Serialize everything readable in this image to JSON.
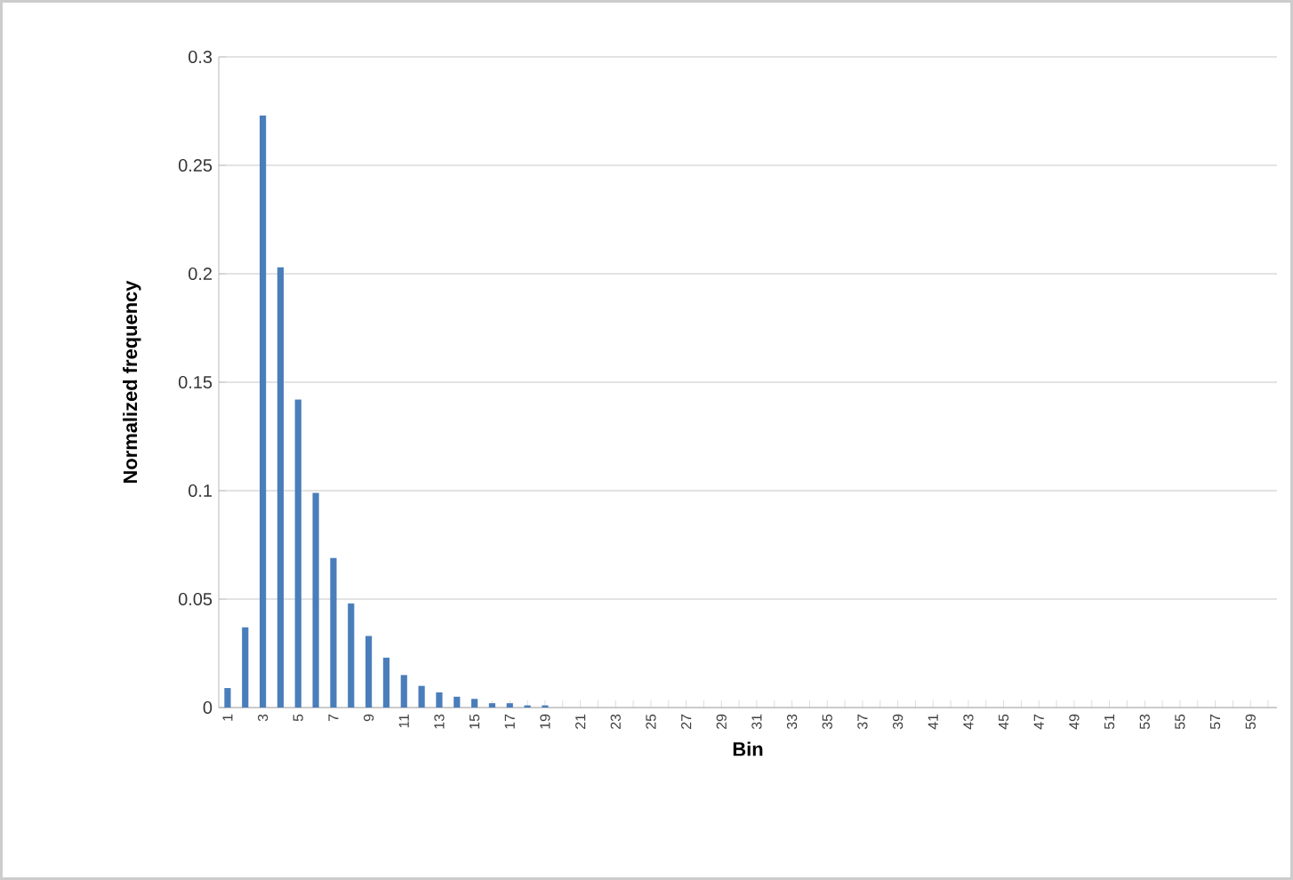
{
  "chart_data": {
    "type": "bar",
    "xlabel": "Bin",
    "ylabel": "Normalized frequency",
    "categories": [
      "1",
      null,
      "3",
      null,
      "5",
      null,
      "7",
      null,
      "9",
      null,
      "11",
      null,
      "13",
      null,
      "15",
      null,
      "17",
      null,
      "19",
      null,
      "21",
      null,
      "23",
      null,
      "25",
      null,
      "27",
      null,
      "29",
      null,
      "31",
      null,
      "33",
      null,
      "35",
      null,
      "37",
      null,
      "39",
      null,
      "41",
      null,
      "43",
      null,
      "45",
      null,
      "47",
      null,
      "49",
      null,
      "51",
      null,
      "53",
      null,
      "55",
      null,
      "57",
      null,
      "59",
      null
    ],
    "values": [
      0.009,
      0.037,
      0.273,
      0.203,
      0.142,
      0.099,
      0.069,
      0.048,
      0.033,
      0.023,
      0.015,
      0.01,
      0.007,
      0.005,
      0.004,
      0.002,
      0.002,
      0.001,
      0.001,
      0,
      0,
      0,
      0,
      0,
      0,
      0,
      0,
      0,
      0,
      0,
      0,
      0,
      0,
      0,
      0,
      0,
      0,
      0,
      0,
      0,
      0,
      0,
      0,
      0,
      0,
      0,
      0,
      0,
      0,
      0,
      0,
      0,
      0,
      0,
      0,
      0,
      0,
      0,
      0,
      0
    ],
    "color": "#4a7ebb",
    "ylim": [
      0,
      0.3
    ],
    "yticks": [
      0,
      0.05,
      0.1,
      0.15,
      0.2,
      0.25,
      0.3
    ],
    "grid": "y"
  }
}
